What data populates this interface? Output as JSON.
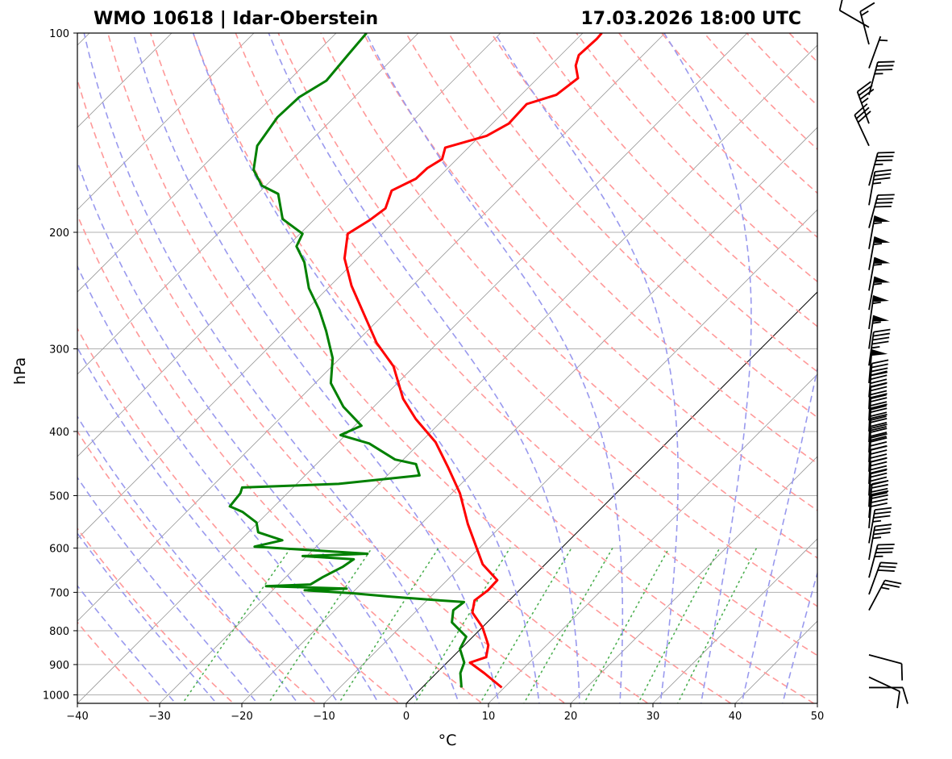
{
  "chart_data": {
    "type": "skew-t",
    "title_left": "WMO 10618 | Idar-Oberstein",
    "title_right": "17.03.2026 18:00 UTC",
    "xlabel": "°C",
    "ylabel": "hPa",
    "xlim": [
      -40,
      50
    ],
    "ylim": [
      1030,
      100
    ],
    "skew_deg": 45,
    "xticks": [
      -40,
      -30,
      -20,
      -10,
      0,
      10,
      20,
      30,
      40,
      50
    ],
    "yticks": [
      100,
      200,
      300,
      400,
      500,
      600,
      700,
      800,
      900,
      1000
    ],
    "grid": true,
    "colors": {
      "temperature": "#ff0000",
      "dewpoint": "#008000",
      "dry_adiabats": "#ff9999",
      "moist_adiabats": "#9999ee",
      "mixing_ratio": "#4caf50",
      "isotherms": "#888888",
      "zero_isotherm": "#000000"
    },
    "temperature": {
      "pressure": [
        975,
        927,
        894,
        877,
        841,
        790,
        751,
        720,
        695,
        671,
        635,
        604,
        552,
        496,
        454,
        415,
        383,
        357,
        319,
        294,
        262,
        241,
        219,
        201,
        192,
        184,
        173,
        166,
        160,
        155,
        149,
        143,
        137,
        128,
        124,
        117,
        112,
        108,
        102,
        100
      ],
      "temp_c": [
        9.7,
        5.8,
        2.8,
        4.1,
        2.9,
        0.0,
        -3.0,
        -4.2,
        -3.8,
        -3.9,
        -7.6,
        -10.0,
        -14.3,
        -19.0,
        -23.5,
        -28.2,
        -33.4,
        -37.4,
        -42.5,
        -47.4,
        -53.2,
        -57.4,
        -61.6,
        -64.2,
        -63.2,
        -62.7,
        -64.1,
        -62.6,
        -62.5,
        -61.8,
        -62.8,
        -59.2,
        -58.0,
        -58.2,
        -55.7,
        -55.1,
        -56.9,
        -57.8,
        -57.6,
        -57.7
      ]
    },
    "dewpoint": {
      "pressure": [
        975,
        927,
        894,
        852,
        817,
        777,
        745,
        724,
        720,
        710,
        702,
        695,
        691,
        685,
        681,
        664,
        640,
        624,
        617,
        612,
        597,
        584,
        568,
        549,
        529,
        519,
        496,
        486,
        480,
        466,
        448,
        441,
        417,
        405,
        392,
        367,
        338,
        310,
        282,
        262,
        243,
        222,
        210,
        201,
        191,
        175,
        170,
        161,
        148,
        134,
        125,
        118,
        108,
        100
      ],
      "dewpoint_c": [
        4.8,
        2.9,
        2.1,
        -0.1,
        -0.8,
        -4.3,
        -5.6,
        -5.3,
        -8.4,
        -15.3,
        -20.1,
        -26.1,
        -21.2,
        -31.3,
        -26.1,
        -25.5,
        -24.3,
        -23.9,
        -30.5,
        -22.9,
        -37.5,
        -34.9,
        -38.8,
        -40.2,
        -43.2,
        -45.4,
        -45.7,
        -46.2,
        -34.9,
        -26.1,
        -27.9,
        -31.0,
        -36.1,
        -40.6,
        -39.2,
        -43.7,
        -48.1,
        -50.9,
        -55.0,
        -58.4,
        -62.3,
        -66.0,
        -68.9,
        -69.7,
        -73.9,
        -77.5,
        -80.5,
        -83.4,
        -85.9,
        -86.9,
        -86.7,
        -85.4,
        -85.9,
        -86.3
      ]
    },
    "wind_barbs": {
      "pressure": [
        98,
        104,
        113,
        124,
        137,
        148,
        170,
        182,
        197,
        212,
        228,
        245,
        262,
        280,
        300,
        318,
        338,
        355,
        370,
        385,
        400,
        415,
        430,
        445,
        460,
        480,
        500,
        520,
        540,
        560,
        590,
        625,
        665,
        705,
        745,
        870,
        940,
        975
      ],
      "speed_kt": [
        10,
        15,
        5,
        35,
        35,
        30,
        35,
        35,
        40,
        55,
        55,
        55,
        55,
        55,
        55,
        45,
        50,
        40,
        40,
        40,
        40,
        40,
        40,
        40,
        40,
        40,
        40,
        40,
        40,
        40,
        35,
        35,
        35,
        30,
        25,
        10,
        10,
        10
      ],
      "direction_deg": [
        300,
        345,
        20,
        15,
        340,
        335,
        15,
        10,
        15,
        10,
        10,
        10,
        10,
        8,
        8,
        8,
        5,
        5,
        3,
        3,
        3,
        3,
        3,
        3,
        3,
        3,
        3,
        3,
        5,
        5,
        10,
        10,
        15,
        20,
        28,
        105,
        115,
        90
      ]
    }
  }
}
